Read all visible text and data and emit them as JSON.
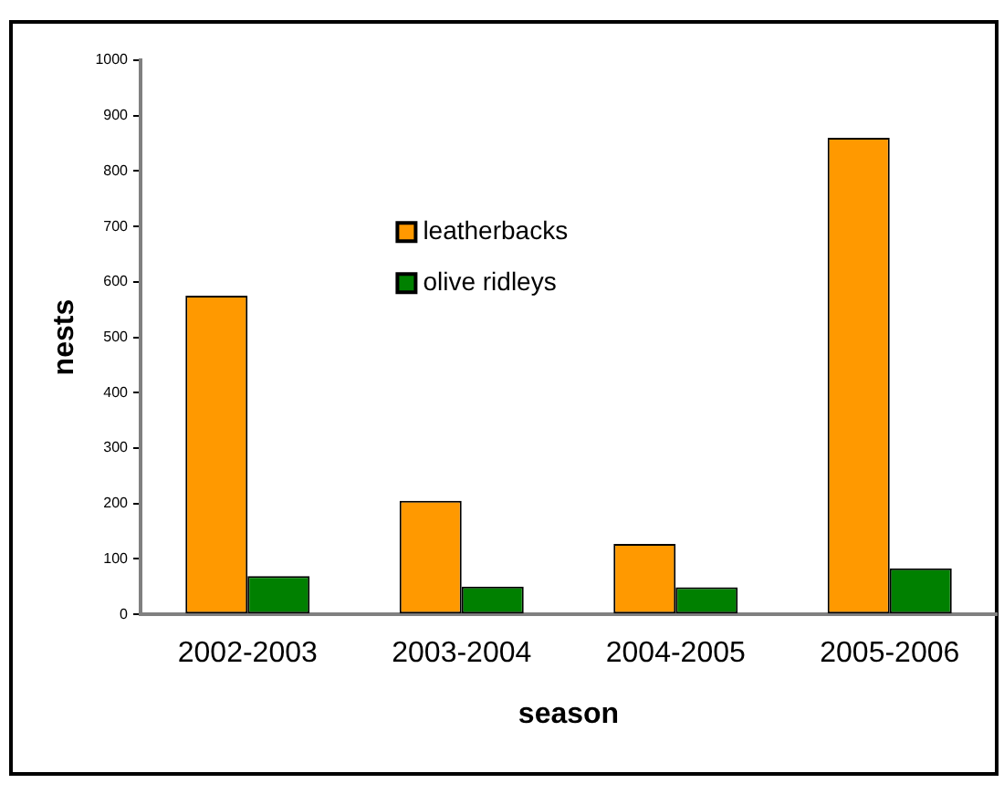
{
  "chart_data": {
    "type": "bar",
    "xlabel": "season",
    "ylabel": "nests",
    "categories": [
      "2002-2003",
      "2003-2004",
      "2004-2005",
      "2005-2006"
    ],
    "series": [
      {
        "name": "leatherbacks",
        "color": "#ff9900",
        "values": [
          575,
          205,
          127,
          860
        ]
      },
      {
        "name": "olive ridleys",
        "color": "#008000",
        "values": [
          69,
          50,
          49,
          83
        ]
      }
    ],
    "ylim": [
      0,
      1000
    ],
    "yticks": [
      0,
      100,
      200,
      300,
      400,
      500,
      600,
      700,
      800,
      900,
      1000
    ],
    "grid": false,
    "legend": "top"
  }
}
